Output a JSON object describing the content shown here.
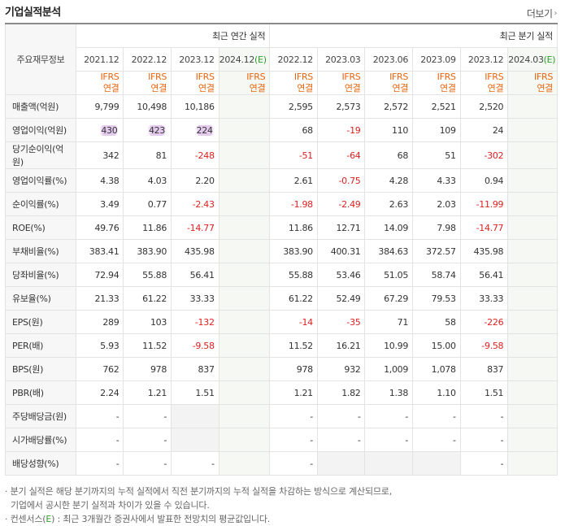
{
  "header": {
    "title": "기업실적분석",
    "more_label": "더보기"
  },
  "table": {
    "corner_label": "주요재무정보",
    "annual_group": "최근 연간 실적",
    "quarter_group": "최근 분기 실적",
    "annual_periods": [
      "2021.12",
      "2022.12",
      "2023.12",
      "2024.12"
    ],
    "annual_estimate_tag": "(E)",
    "quarter_periods": [
      "2022.12",
      "2023.03",
      "2023.06",
      "2023.09",
      "2023.12",
      "2024.03"
    ],
    "quarter_estimate_tag": "(E)",
    "basis_top": "IFRS",
    "basis_bottom": "연결",
    "rows": [
      {
        "label": "매출액(억원)",
        "annual": [
          "9,799",
          "10,498",
          "10,186",
          ""
        ],
        "quarter": [
          "2,595",
          "2,573",
          "2,572",
          "2,521",
          "2,520",
          ""
        ]
      },
      {
        "label": "영업이익(억원)",
        "annual": [
          "430",
          "423",
          "224",
          ""
        ],
        "quarter": [
          "68",
          "-19",
          "110",
          "109",
          "24",
          ""
        ]
      },
      {
        "label": "당기순이익(억원)",
        "annual": [
          "342",
          "81",
          "-248",
          ""
        ],
        "quarter": [
          "-51",
          "-64",
          "68",
          "51",
          "-302",
          ""
        ]
      },
      {
        "label": "영업이익률(%)",
        "annual": [
          "4.38",
          "4.03",
          "2.20",
          ""
        ],
        "quarter": [
          "2.61",
          "-0.75",
          "4.28",
          "4.33",
          "0.94",
          ""
        ]
      },
      {
        "label": "순이익률(%)",
        "annual": [
          "3.49",
          "0.77",
          "-2.43",
          ""
        ],
        "quarter": [
          "-1.98",
          "-2.49",
          "2.63",
          "2.03",
          "-11.99",
          ""
        ]
      },
      {
        "label": "ROE(%)",
        "annual": [
          "49.76",
          "11.86",
          "-14.77",
          ""
        ],
        "quarter": [
          "11.86",
          "12.71",
          "14.09",
          "7.98",
          "-14.77",
          ""
        ]
      },
      {
        "label": "부채비율(%)",
        "annual": [
          "383.41",
          "383.90",
          "435.98",
          ""
        ],
        "quarter": [
          "383.90",
          "400.31",
          "384.63",
          "372.57",
          "435.98",
          ""
        ]
      },
      {
        "label": "당좌비율(%)",
        "annual": [
          "72.94",
          "55.88",
          "56.41",
          ""
        ],
        "quarter": [
          "55.88",
          "53.46",
          "51.05",
          "58.74",
          "56.41",
          ""
        ]
      },
      {
        "label": "유보율(%)",
        "annual": [
          "21.33",
          "61.22",
          "33.33",
          ""
        ],
        "quarter": [
          "61.22",
          "52.49",
          "67.29",
          "79.53",
          "33.33",
          ""
        ]
      },
      {
        "label": "EPS(원)",
        "annual": [
          "289",
          "103",
          "-132",
          ""
        ],
        "quarter": [
          "-14",
          "-35",
          "71",
          "58",
          "-226",
          ""
        ]
      },
      {
        "label": "PER(배)",
        "annual": [
          "5.93",
          "11.52",
          "-9.58",
          ""
        ],
        "quarter": [
          "11.52",
          "16.21",
          "10.99",
          "15.00",
          "-9.58",
          ""
        ]
      },
      {
        "label": "BPS(원)",
        "annual": [
          "762",
          "978",
          "837",
          ""
        ],
        "quarter": [
          "978",
          "932",
          "1,009",
          "1,078",
          "837",
          ""
        ]
      },
      {
        "label": "PBR(배)",
        "annual": [
          "2.24",
          "1.21",
          "1.51",
          ""
        ],
        "quarter": [
          "1.21",
          "1.82",
          "1.38",
          "1.10",
          "1.51",
          ""
        ]
      },
      {
        "label": "주당배당금(원)",
        "annual": [
          "-",
          "-",
          "",
          ""
        ],
        "quarter": [
          "-",
          "-",
          "-",
          "-",
          "-",
          ""
        ]
      },
      {
        "label": "시가배당률(%)",
        "annual": [
          "-",
          "-",
          "",
          ""
        ],
        "quarter": [
          "-",
          "-",
          "-",
          "-",
          "-",
          ""
        ]
      },
      {
        "label": "배당성향(%)",
        "annual": [
          "-",
          "-",
          "-",
          ""
        ],
        "quarter": [
          "-",
          "",
          "",
          "",
          "-",
          ""
        ]
      }
    ]
  },
  "notes": {
    "line1": "· 분기 실적은 해당 분기까지의 누적 실적에서 직전 분기까지의 누적 실적을 차감하는 방식으로 계산되므로,",
    "line2": "기업에서 공시한 분기 실적과 차이가 있을 수 있습니다.",
    "line3_prefix": "· 컨센서스(",
    "line3_tag": "E",
    "line3_suffix": ") : 최근 3개월간 증권사에서 발표한 전망치의 평균값입니다."
  }
}
